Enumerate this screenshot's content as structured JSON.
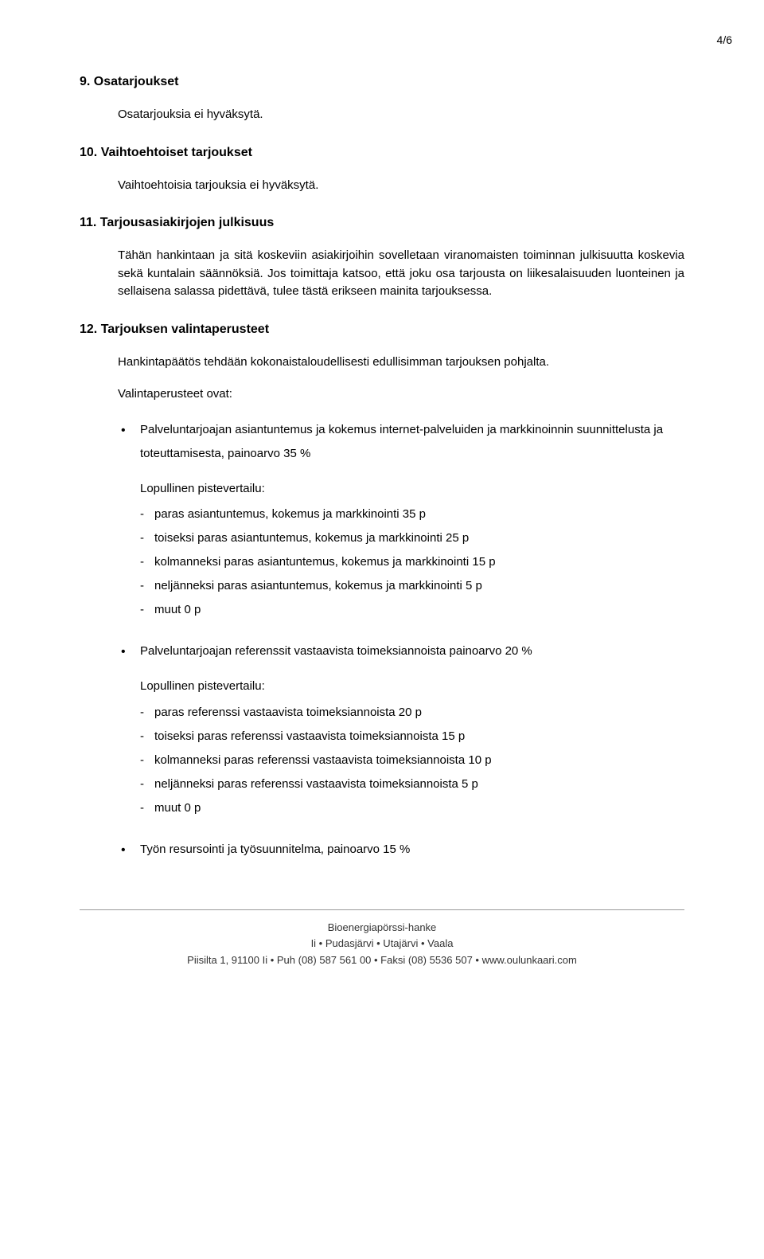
{
  "page_number": "4/6",
  "sections": {
    "s9": {
      "heading": "9. Osatarjoukset",
      "body": "Osatarjouksia ei hyväksytä."
    },
    "s10": {
      "heading": "10. Vaihtoehtoiset tarjoukset",
      "body": "Vaihtoehtoisia tarjouksia ei hyväksytä."
    },
    "s11": {
      "heading": "11. Tarjousasiakirjojen julkisuus",
      "body": "Tähän hankintaan ja sitä koskeviin asiakirjoihin sovelletaan viranomaisten toiminnan julkisuutta koskevia sekä kuntalain säännöksiä. Jos toimittaja katsoo, että joku osa tarjousta on liikesalaisuuden luonteinen ja sellaisena salassa pidettävä, tulee tästä erikseen mainita tarjouksessa."
    },
    "s12": {
      "heading": "12. Tarjouksen valintaperusteet",
      "intro1": "Hankintapäätös tehdään kokonaistaloudellisesti edullisimman tarjouksen pohjalta.",
      "intro2": "Valintaperusteet ovat:",
      "criteria": [
        {
          "text": "Palveluntarjoajan asiantuntemus ja kokemus internet-palveluiden ja markkinoinnin suunnittelusta ja toteuttamisesta, painoarvo 35 %",
          "scoring_title": "Lopullinen pistevertailu:",
          "scoring": [
            "paras asiantuntemus, kokemus ja markkinointi 35 p",
            "toiseksi paras asiantuntemus, kokemus ja markkinointi 25 p",
            "kolmanneksi paras asiantuntemus, kokemus ja markkinointi 15 p",
            "neljänneksi paras asiantuntemus, kokemus ja markkinointi 5 p",
            "muut 0 p"
          ]
        },
        {
          "text": "Palveluntarjoajan referenssit vastaavista toimeksiannoista painoarvo 20 %",
          "scoring_title": "Lopullinen pistevertailu:",
          "scoring": [
            "paras referenssi vastaavista toimeksiannoista 20 p",
            "toiseksi paras referenssi vastaavista toimeksiannoista 15 p",
            "kolmanneksi paras referenssi vastaavista toimeksiannoista 10 p",
            "neljänneksi paras referenssi vastaavista toimeksiannoista 5 p",
            "muut 0 p"
          ]
        },
        {
          "text": "Työn resursointi ja työsuunnitelma, painoarvo 15 %"
        }
      ]
    }
  },
  "footer": {
    "line1": "Bioenergiapörssi-hanke",
    "line2": "Ii • Pudasjärvi • Utajärvi • Vaala",
    "line3": "Piisilta 1, 91100 Ii • Puh (08) 587 561 00 • Faksi (08) 5536 507 • www.oulunkaari.com"
  },
  "colors": {
    "text": "#000000",
    "footer_text": "#333333",
    "divider": "#999999",
    "background": "#ffffff"
  },
  "typography": {
    "body_font": "Arial",
    "body_size_pt": 11,
    "heading_weight": "bold",
    "footer_size_pt": 10
  }
}
